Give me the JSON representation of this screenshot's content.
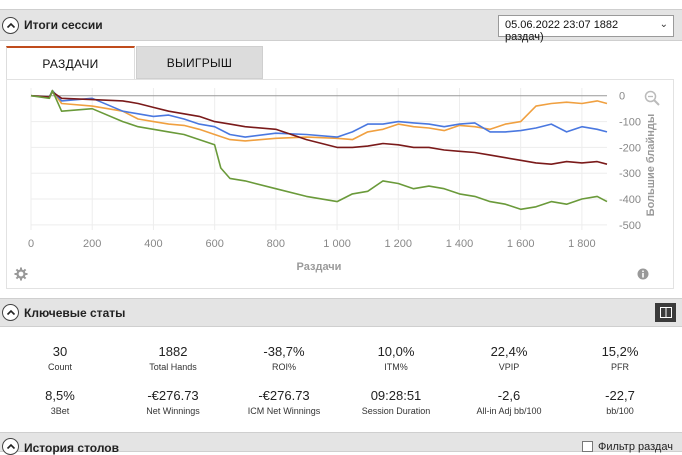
{
  "session_panel": {
    "title": "Итоги сессии",
    "session_select_value": "05.06.2022 23:07 1882 раздач)"
  },
  "tabs": [
    {
      "label": "РАЗДАЧИ",
      "active": true
    },
    {
      "label": "ВЫИГРЫШ",
      "active": false
    }
  ],
  "chart_data": {
    "type": "line",
    "xlabel": "Раздачи",
    "ylabel": "Большие блайнды",
    "x_ticks": [
      "0",
      "200",
      "400",
      "600",
      "800",
      "1 000",
      "1 200",
      "1 400",
      "1 600",
      "1 800"
    ],
    "x_tick_values": [
      0,
      200,
      400,
      600,
      800,
      1000,
      1200,
      1400,
      1600,
      1800
    ],
    "y_ticks": [
      "0",
      "-100",
      "-200",
      "-300",
      "-400",
      "-500"
    ],
    "y_tick_values": [
      0,
      -100,
      -200,
      -300,
      -400,
      -500
    ],
    "xlim": [
      0,
      1882
    ],
    "ylim": [
      -520,
      30
    ],
    "grid": true,
    "y_axis_side": "right",
    "series": [
      {
        "color": "#f0a040",
        "x": [
          0,
          60,
          70,
          100,
          200,
          300,
          350,
          400,
          450,
          500,
          550,
          600,
          650,
          700,
          800,
          900,
          1000,
          1050,
          1100,
          1150,
          1200,
          1250,
          1300,
          1350,
          1400,
          1450,
          1500,
          1550,
          1600,
          1650,
          1700,
          1750,
          1800,
          1850,
          1882
        ],
        "y": [
          0,
          -5,
          20,
          -30,
          -40,
          -60,
          -90,
          -100,
          -110,
          -115,
          -130,
          -150,
          -170,
          -175,
          -165,
          -160,
          -165,
          -170,
          -140,
          -130,
          -110,
          -120,
          -125,
          -135,
          -115,
          -120,
          -130,
          -110,
          -100,
          -40,
          -30,
          -25,
          -30,
          -20,
          -30
        ]
      },
      {
        "color": "#4a78e0",
        "x": [
          0,
          60,
          70,
          100,
          200,
          300,
          350,
          400,
          450,
          500,
          550,
          600,
          650,
          700,
          800,
          900,
          1000,
          1050,
          1100,
          1150,
          1200,
          1250,
          1300,
          1350,
          1400,
          1450,
          1500,
          1550,
          1600,
          1650,
          1700,
          1750,
          1800,
          1850,
          1882
        ],
        "y": [
          0,
          -5,
          20,
          -20,
          -10,
          -60,
          -70,
          -80,
          -75,
          -90,
          -110,
          -120,
          -150,
          -160,
          -145,
          -150,
          -160,
          -140,
          -110,
          -110,
          -100,
          -105,
          -110,
          -120,
          -110,
          -105,
          -140,
          -140,
          -135,
          -125,
          -110,
          -140,
          -120,
          -130,
          -140
        ]
      },
      {
        "color": "#7a1a1a",
        "x": [
          0,
          60,
          70,
          100,
          200,
          300,
          350,
          400,
          450,
          500,
          550,
          600,
          650,
          700,
          800,
          900,
          1000,
          1050,
          1100,
          1150,
          1200,
          1250,
          1300,
          1350,
          1400,
          1450,
          1500,
          1550,
          1600,
          1650,
          1700,
          1750,
          1800,
          1850,
          1882
        ],
        "y": [
          0,
          -5,
          15,
          -10,
          -15,
          -20,
          -30,
          -45,
          -60,
          -70,
          -80,
          -100,
          -110,
          -120,
          -130,
          -170,
          -200,
          -200,
          -195,
          -185,
          -190,
          -200,
          -200,
          -210,
          -215,
          -220,
          -230,
          -240,
          -250,
          -260,
          -265,
          -255,
          -260,
          -255,
          -265
        ]
      },
      {
        "color": "#6a9a3a",
        "x": [
          0,
          60,
          70,
          100,
          200,
          300,
          350,
          400,
          450,
          500,
          550,
          600,
          620,
          650,
          700,
          800,
          900,
          1000,
          1050,
          1100,
          1150,
          1200,
          1250,
          1300,
          1350,
          1400,
          1450,
          1500,
          1550,
          1600,
          1650,
          1700,
          1750,
          1800,
          1850,
          1882
        ],
        "y": [
          0,
          -10,
          20,
          -60,
          -50,
          -100,
          -120,
          -130,
          -140,
          -150,
          -170,
          -190,
          -280,
          -320,
          -330,
          -360,
          -390,
          -410,
          -380,
          -370,
          -330,
          -340,
          -360,
          -350,
          -360,
          -380,
          -390,
          -410,
          -420,
          -440,
          -430,
          -410,
          -420,
          -400,
          -390,
          -410
        ]
      }
    ]
  },
  "key_stats": {
    "title": "Ключевые статы",
    "items": [
      {
        "value": "30",
        "label": "Count"
      },
      {
        "value": "1882",
        "label": "Total Hands"
      },
      {
        "value": "-38,7%",
        "label": "ROI%"
      },
      {
        "value": "10,0%",
        "label": "ITM%"
      },
      {
        "value": "22,4%",
        "label": "VPIP"
      },
      {
        "value": "15,2%",
        "label": "PFR"
      },
      {
        "value": "8,5%",
        "label": "3Bet"
      },
      {
        "value": "-€276.73",
        "label": "Net Winnings"
      },
      {
        "value": "-€276.73",
        "label": "ICM Net Winnings"
      },
      {
        "value": "09:28:51",
        "label": "Session Duration"
      },
      {
        "value": "-2,6",
        "label": "All-in Adj bb/100"
      },
      {
        "value": "-22,7",
        "label": "bb/100"
      }
    ]
  },
  "table_history": {
    "title": "История столов",
    "filter_label": "Фильтр раздач"
  }
}
